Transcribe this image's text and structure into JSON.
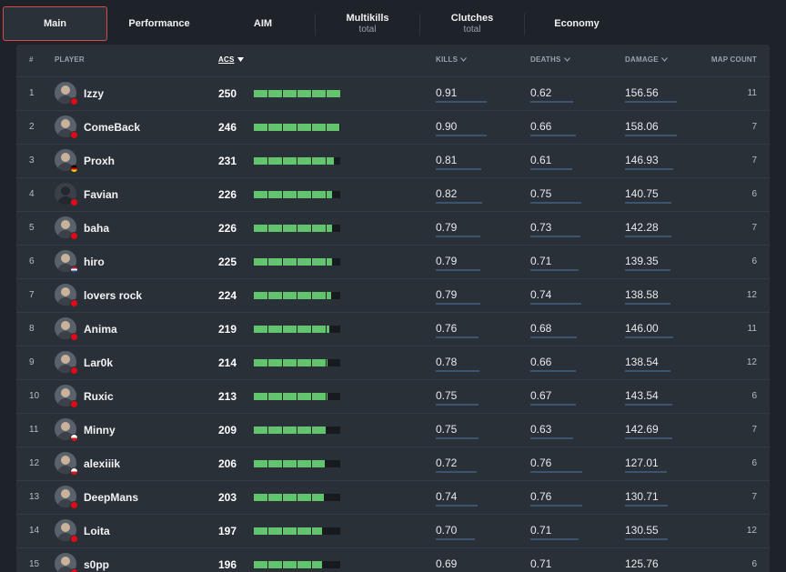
{
  "tabs": [
    {
      "label": "Main",
      "sub": "",
      "active": true
    },
    {
      "label": "Performance",
      "sub": ""
    },
    {
      "label": "AIM",
      "sub": ""
    },
    {
      "label": "Multikills",
      "sub": "total"
    },
    {
      "label": "Clutches",
      "sub": "total"
    },
    {
      "label": "Economy",
      "sub": ""
    }
  ],
  "columns": {
    "rank": "#",
    "player": "PLAYER",
    "acs": "ACS",
    "kills": "KILLS",
    "deaths": "DEATHS",
    "damage": "DAMAGE",
    "maps": "MAP COUNT"
  },
  "sort_column": "ACS",
  "colors": {
    "accent": "#d64a4f",
    "bar": "#62c46d",
    "stat_line": "#3b5570"
  },
  "acs_max": 250,
  "rows": [
    {
      "rank": "1",
      "name": "Izzy",
      "flag": "tr",
      "acs": "250",
      "kills": "0.91",
      "deaths": "0.62",
      "damage": "156.56",
      "maps": "11"
    },
    {
      "rank": "2",
      "name": "ComeBack",
      "flag": "tr",
      "acs": "246",
      "kills": "0.90",
      "deaths": "0.66",
      "damage": "158.06",
      "maps": "7"
    },
    {
      "rank": "3",
      "name": "Proxh",
      "flag": "de",
      "acs": "231",
      "kills": "0.81",
      "deaths": "0.61",
      "damage": "146.93",
      "maps": "7"
    },
    {
      "rank": "4",
      "name": "Favian",
      "flag": "tr",
      "acs": "226",
      "kills": "0.82",
      "deaths": "0.75",
      "damage": "140.75",
      "maps": "6"
    },
    {
      "rank": "5",
      "name": "baha",
      "flag": "tr",
      "acs": "226",
      "kills": "0.79",
      "deaths": "0.73",
      "damage": "142.28",
      "maps": "7"
    },
    {
      "rank": "6",
      "name": "hiro",
      "flag": "nl",
      "acs": "225",
      "kills": "0.79",
      "deaths": "0.71",
      "damage": "139.35",
      "maps": "6"
    },
    {
      "rank": "7",
      "name": "lovers rock",
      "flag": "tr",
      "acs": "224",
      "kills": "0.79",
      "deaths": "0.74",
      "damage": "138.58",
      "maps": "12"
    },
    {
      "rank": "8",
      "name": "Anima",
      "flag": "tr",
      "acs": "219",
      "kills": "0.76",
      "deaths": "0.68",
      "damage": "146.00",
      "maps": "11"
    },
    {
      "rank": "9",
      "name": "Lar0k",
      "flag": "tr",
      "acs": "214",
      "kills": "0.78",
      "deaths": "0.66",
      "damage": "138.54",
      "maps": "12"
    },
    {
      "rank": "10",
      "name": "Ruxic",
      "flag": "tr",
      "acs": "213",
      "kills": "0.75",
      "deaths": "0.67",
      "damage": "143.54",
      "maps": "6"
    },
    {
      "rank": "11",
      "name": "Minny",
      "flag": "cz",
      "acs": "209",
      "kills": "0.75",
      "deaths": "0.63",
      "damage": "142.69",
      "maps": "7"
    },
    {
      "rank": "12",
      "name": "alexiiik",
      "flag": "cz",
      "acs": "206",
      "kills": "0.72",
      "deaths": "0.76",
      "damage": "127.01",
      "maps": "6"
    },
    {
      "rank": "13",
      "name": "DeepMans",
      "flag": "tr",
      "acs": "203",
      "kills": "0.74",
      "deaths": "0.76",
      "damage": "130.71",
      "maps": "7"
    },
    {
      "rank": "14",
      "name": "Loita",
      "flag": "tr",
      "acs": "197",
      "kills": "0.70",
      "deaths": "0.71",
      "damage": "130.55",
      "maps": "12"
    },
    {
      "rank": "15",
      "name": "s0pp",
      "flag": "tr",
      "acs": "196",
      "kills": "0.69",
      "deaths": "0.71",
      "damage": "125.76",
      "maps": "6"
    }
  ]
}
